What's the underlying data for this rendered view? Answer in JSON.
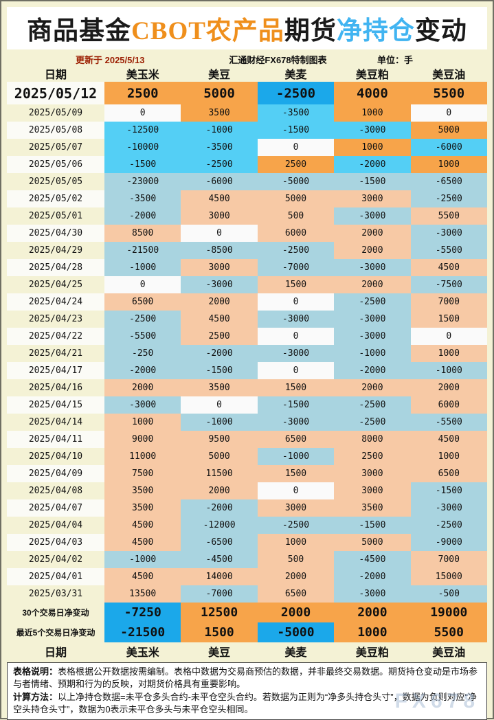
{
  "page": {
    "title_segments": [
      {
        "text": "商品基金",
        "color": "#1A1A1A"
      },
      {
        "text": "CBOT农产品",
        "color": "#EF8F1C"
      },
      {
        "text": "期货",
        "color": "#1A1A1A"
      },
      {
        "text": "净持仓",
        "color": "#41B4F1"
      },
      {
        "text": "变动",
        "color": "#1A1A1A"
      }
    ],
    "meta": {
      "updated": "更新于 2025/5/13",
      "source": "汇通财经FX678特制图表",
      "unit": "单位：手"
    },
    "watermark": "FX678"
  },
  "chart_data": {
    "type": "table",
    "title": "商品基金CBOT农产品期货净持仓变动",
    "unit": "手",
    "columns": [
      "日期",
      "美玉米",
      "美豆",
      "美麦",
      "美豆粕",
      "美豆油"
    ],
    "rows": [
      {
        "date": "2025/05/12",
        "values": [
          2500,
          5000,
          -2500,
          4000,
          5500
        ]
      },
      {
        "date": "2025/05/09",
        "values": [
          0,
          3500,
          -3500,
          1000,
          0
        ]
      },
      {
        "date": "2025/05/08",
        "values": [
          -12500,
          -1000,
          -1500,
          -3000,
          5000
        ]
      },
      {
        "date": "2025/05/07",
        "values": [
          -10000,
          -3500,
          0,
          1000,
          -6000
        ]
      },
      {
        "date": "2025/05/06",
        "values": [
          -1500,
          -2500,
          2500,
          -2000,
          1000
        ]
      },
      {
        "date": "2025/05/05",
        "values": [
          -23000,
          -6000,
          -5000,
          -1500,
          -6500
        ]
      },
      {
        "date": "2025/05/02",
        "values": [
          -3500,
          4500,
          5000,
          3000,
          -2500
        ]
      },
      {
        "date": "2025/05/01",
        "values": [
          -2000,
          3000,
          500,
          -3000,
          5500
        ]
      },
      {
        "date": "2025/04/30",
        "values": [
          8500,
          0,
          6000,
          2000,
          -3000
        ]
      },
      {
        "date": "2025/04/29",
        "values": [
          -21500,
          -8500,
          -2500,
          2000,
          -5500
        ]
      },
      {
        "date": "2025/04/28",
        "values": [
          -1000,
          3000,
          -7000,
          -3000,
          4500
        ]
      },
      {
        "date": "2025/04/25",
        "values": [
          0,
          -3000,
          1500,
          2000,
          -7500
        ]
      },
      {
        "date": "2025/04/24",
        "values": [
          6500,
          2000,
          0,
          -2500,
          7000
        ]
      },
      {
        "date": "2025/04/23",
        "values": [
          -2500,
          4500,
          -3000,
          -3000,
          1500
        ]
      },
      {
        "date": "2025/04/22",
        "values": [
          -5500,
          2500,
          0,
          -3000,
          0
        ]
      },
      {
        "date": "2025/04/21",
        "values": [
          -250,
          -2000,
          -3000,
          -1000,
          1000
        ]
      },
      {
        "date": "2025/04/17",
        "values": [
          -2000,
          -1500,
          0,
          -2000,
          -1000
        ]
      },
      {
        "date": "2025/04/16",
        "values": [
          2000,
          3500,
          1500,
          2000,
          2000
        ]
      },
      {
        "date": "2025/04/15",
        "values": [
          -3000,
          0,
          -1500,
          -2500,
          6000
        ]
      },
      {
        "date": "2025/04/14",
        "values": [
          1000,
          -1000,
          -3000,
          -2500,
          -5500
        ]
      },
      {
        "date": "2025/04/11",
        "values": [
          9000,
          9500,
          6500,
          8000,
          4500
        ]
      },
      {
        "date": "2025/04/10",
        "values": [
          11000,
          5000,
          -1000,
          2500,
          1000
        ]
      },
      {
        "date": "2025/04/09",
        "values": [
          7500,
          11500,
          1500,
          3000,
          6500
        ]
      },
      {
        "date": "2025/04/08",
        "values": [
          3500,
          2000,
          0,
          3000,
          -1500
        ]
      },
      {
        "date": "2025/04/07",
        "values": [
          3500,
          -2000,
          3000,
          3500,
          -3000
        ]
      },
      {
        "date": "2025/04/04",
        "values": [
          4500,
          -12000,
          -2500,
          -1500,
          -2500
        ]
      },
      {
        "date": "2025/04/03",
        "values": [
          4500,
          -6500,
          1000,
          5000,
          -9000
        ]
      },
      {
        "date": "2025/04/02",
        "values": [
          -1000,
          -4500,
          500,
          -4500,
          7000
        ]
      },
      {
        "date": "2025/04/01",
        "values": [
          4500,
          14000,
          2000,
          -2000,
          15000
        ]
      },
      {
        "date": "2025/03/31",
        "values": [
          13500,
          -7000,
          6500,
          -3000,
          -500
        ]
      }
    ],
    "summary_rows": [
      {
        "label": "30个交易日净变动",
        "values": [
          -7250,
          12500,
          2000,
          2000,
          19000
        ]
      },
      {
        "label": "最近5个交易日净变动",
        "values": [
          -21500,
          1500,
          -5000,
          1000,
          5500
        ]
      }
    ]
  },
  "footer": {
    "note_label": "表格说明：",
    "note_text": "表格根据公开数据按需编制。表格中数据为交易商预估的数据，并非最终交易数据。期货持仓变动是市场参与者情绪、预期和行为的反映，对期货价格具有重要影响。",
    "method_label": "计算方法：",
    "method_text": "以上净持仓数据=未平仓多头合约-未平仓空头合约。若数据为正则为“净多头持仓头寸”，数据为负则对应“净空头持仓头寸”，数据为0表示未平仓多头与未平仓空头相同。"
  },
  "colors": {
    "page_bg": "#F4F2D5",
    "bright_orange": "#F7A44A",
    "bright_cyan": "#54CFF5",
    "deep_blue": "#1BA8EA",
    "pale_salmon": "#F7C9A5",
    "pale_blue": "#A9D4E0",
    "zero_bg": "#FAFAFA",
    "date_white": "#FBFBF6",
    "update_red": "#9B1D00"
  }
}
